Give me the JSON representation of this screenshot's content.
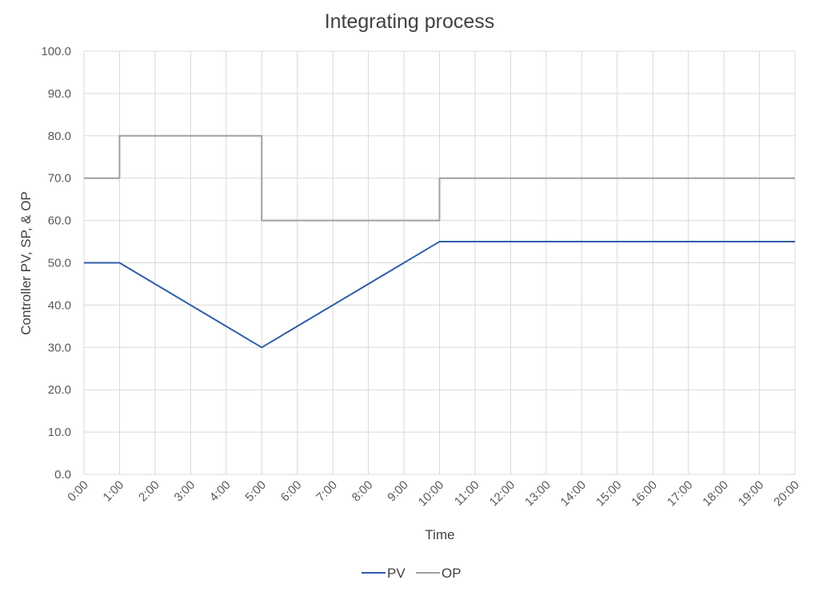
{
  "chart_data": {
    "type": "line",
    "title": "Integrating process",
    "xlabel": "Time",
    "ylabel": "Controller PV, SP, & OP",
    "ylim": [
      0,
      100
    ],
    "yticks": [
      "0.0",
      "10.0",
      "20.0",
      "30.0",
      "40.0",
      "50.0",
      "60.0",
      "70.0",
      "80.0",
      "90.0",
      "100.0"
    ],
    "xticks": [
      "0:00",
      "1:00",
      "2:00",
      "3:00",
      "4:00",
      "5:00",
      "6:00",
      "7:00",
      "8:00",
      "9:00",
      "10:00",
      "11:00",
      "12:00",
      "13:00",
      "14:00",
      "15:00",
      "16:00",
      "17:00",
      "18:00",
      "19:00",
      "20:00"
    ],
    "xlim_hours": [
      0,
      20
    ],
    "grid": true,
    "legend_position": "bottom",
    "series": [
      {
        "name": "PV",
        "color": "#2e5ea8",
        "points": [
          [
            0,
            50
          ],
          [
            1,
            50
          ],
          [
            5,
            30
          ],
          [
            10,
            55
          ],
          [
            20,
            55
          ]
        ]
      },
      {
        "name": "OP",
        "color": "#a0a0a0",
        "points": [
          [
            0,
            70
          ],
          [
            1,
            70
          ],
          [
            1,
            80
          ],
          [
            5,
            80
          ],
          [
            5,
            60
          ],
          [
            10,
            60
          ],
          [
            10,
            70
          ],
          [
            20,
            70
          ]
        ]
      }
    ]
  },
  "legend": {
    "pv": "PV",
    "op": "OP"
  }
}
